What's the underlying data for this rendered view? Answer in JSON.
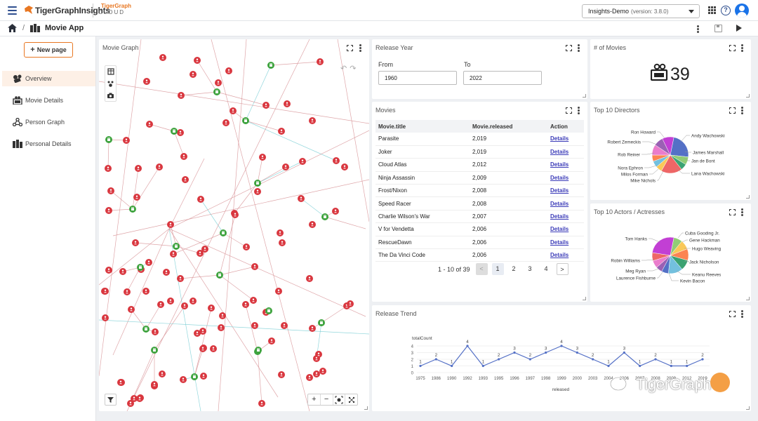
{
  "header": {
    "brand": "TigerGraphInsights",
    "cloud_logo_line1": "TigerGraph",
    "cloud_logo_line2": "CLOUD",
    "workspace": "Insights-Demo",
    "version": "(version: 3.8.0)"
  },
  "appbar": {
    "crumb_sep": "/",
    "app_title": "Movie App"
  },
  "sidebar": {
    "new_page_label": "New page",
    "items": [
      {
        "label": "Overview",
        "icon": "movie-camera-icon",
        "active": true
      },
      {
        "label": "Movie Details",
        "icon": "film-reel-icon",
        "active": false
      },
      {
        "label": "Person Graph",
        "icon": "network-icon",
        "active": false
      },
      {
        "label": "Personal Details",
        "icon": "people-icon",
        "active": false
      }
    ]
  },
  "graph": {
    "title": "Movie Graph",
    "zoom_in": "+",
    "zoom_out": "−",
    "colors": {
      "person": "#d9373f",
      "movie": "#3ea33e",
      "edge_red": "#d9969a",
      "edge_teal": "#7fd0d6"
    }
  },
  "release_year": {
    "title": "Release Year",
    "from_label": "From",
    "from_value": "1960",
    "to_label": "To",
    "to_value": "2022"
  },
  "movie_count": {
    "title": "# of Movies",
    "value": "39"
  },
  "movies": {
    "title": "Movies",
    "columns": [
      "Movie.title",
      "Movie.released",
      "Action"
    ],
    "rows": [
      {
        "title": "Parasite",
        "released": "2,019",
        "action": "Details"
      },
      {
        "title": "Joker",
        "released": "2,019",
        "action": "Details"
      },
      {
        "title": "Cloud Atlas",
        "released": "2,012",
        "action": "Details"
      },
      {
        "title": "Ninja Assassin",
        "released": "2,009",
        "action": "Details"
      },
      {
        "title": "Frost/Nixon",
        "released": "2,008",
        "action": "Details"
      },
      {
        "title": "Speed Racer",
        "released": "2,008",
        "action": "Details"
      },
      {
        "title": "Charlie Wilson's War",
        "released": "2,007",
        "action": "Details"
      },
      {
        "title": "V for Vendetta",
        "released": "2,006",
        "action": "Details"
      },
      {
        "title": "RescueDawn",
        "released": "2,006",
        "action": "Details"
      },
      {
        "title": "The Da Vinci Code",
        "released": "2,006",
        "action": "Details"
      }
    ],
    "pager": {
      "range": "1 - 10 of 39",
      "prev": "<",
      "pages": [
        "1",
        "2",
        "3",
        "4"
      ],
      "next": ">"
    }
  },
  "directors": {
    "title": "Top 10 Directors"
  },
  "actors": {
    "title": "Top 10 Actors / Actresses"
  },
  "trend": {
    "title": "Release Trend"
  },
  "watermark": {
    "text": "TigerGraph"
  },
  "chart_data": [
    {
      "type": "pie",
      "title": "Top 10 Directors",
      "labels": [
        "Andy Wachowski",
        "James Marshall",
        "Jan de Bont",
        "Lana Wachowski",
        "Mike Nichols",
        "Milos Forman",
        "Nora Ephron",
        "Rob Reiner",
        "Robert Zemeckis",
        "Ron Howard"
      ],
      "values": [
        5,
        1.5,
        1.2,
        4,
        1.2,
        1.2,
        1.2,
        2,
        1.8,
        2.2
      ],
      "colors": [
        "#5470c6",
        "#91cc75",
        "#3ba272",
        "#ee6666",
        "#fac858",
        "#73c0de",
        "#fc8452",
        "#ea7ccc",
        "#9a60b4",
        "#c23fd4"
      ]
    },
    {
      "type": "pie",
      "title": "Top 10 Actors / Actresses",
      "labels": [
        "Cuba Gooding Jr.",
        "Gene Hackman",
        "Hugo Weaving",
        "Jack Nicholson",
        "Keanu Reeves",
        "Kevin Bacon",
        "Laurence Fishburne",
        "Meg Ryan",
        "Robin Williams",
        "Tom Hanks"
      ],
      "values": [
        1.5,
        1.6,
        2,
        1.8,
        2.5,
        1.2,
        1.1,
        1.3,
        1.4,
        5
      ],
      "colors": [
        "#91cc75",
        "#fac858",
        "#fc8452",
        "#3ba272",
        "#73c0de",
        "#5470c6",
        "#9a60b4",
        "#ea7ccc",
        "#ee6666",
        "#c23fd4"
      ]
    },
    {
      "type": "line",
      "title": "Release Trend",
      "ylabel": "totalCount",
      "xlabel": "released",
      "x": [
        "1975",
        "1986",
        "1990",
        "1992",
        "1993",
        "1995",
        "1996",
        "1997",
        "1998",
        "1999",
        "2000",
        "2003",
        "2004",
        "2006",
        "2007",
        "2008",
        "2009",
        "2012",
        "2019"
      ],
      "values": [
        1,
        2,
        1,
        4,
        1,
        2,
        3,
        2,
        3,
        4,
        3,
        2,
        1,
        3,
        1,
        2,
        1,
        1,
        2
      ],
      "ylim": [
        0,
        4
      ],
      "yticks": [
        "0",
        "1",
        "2",
        "3",
        "4"
      ],
      "color": "#5470c6"
    }
  ]
}
